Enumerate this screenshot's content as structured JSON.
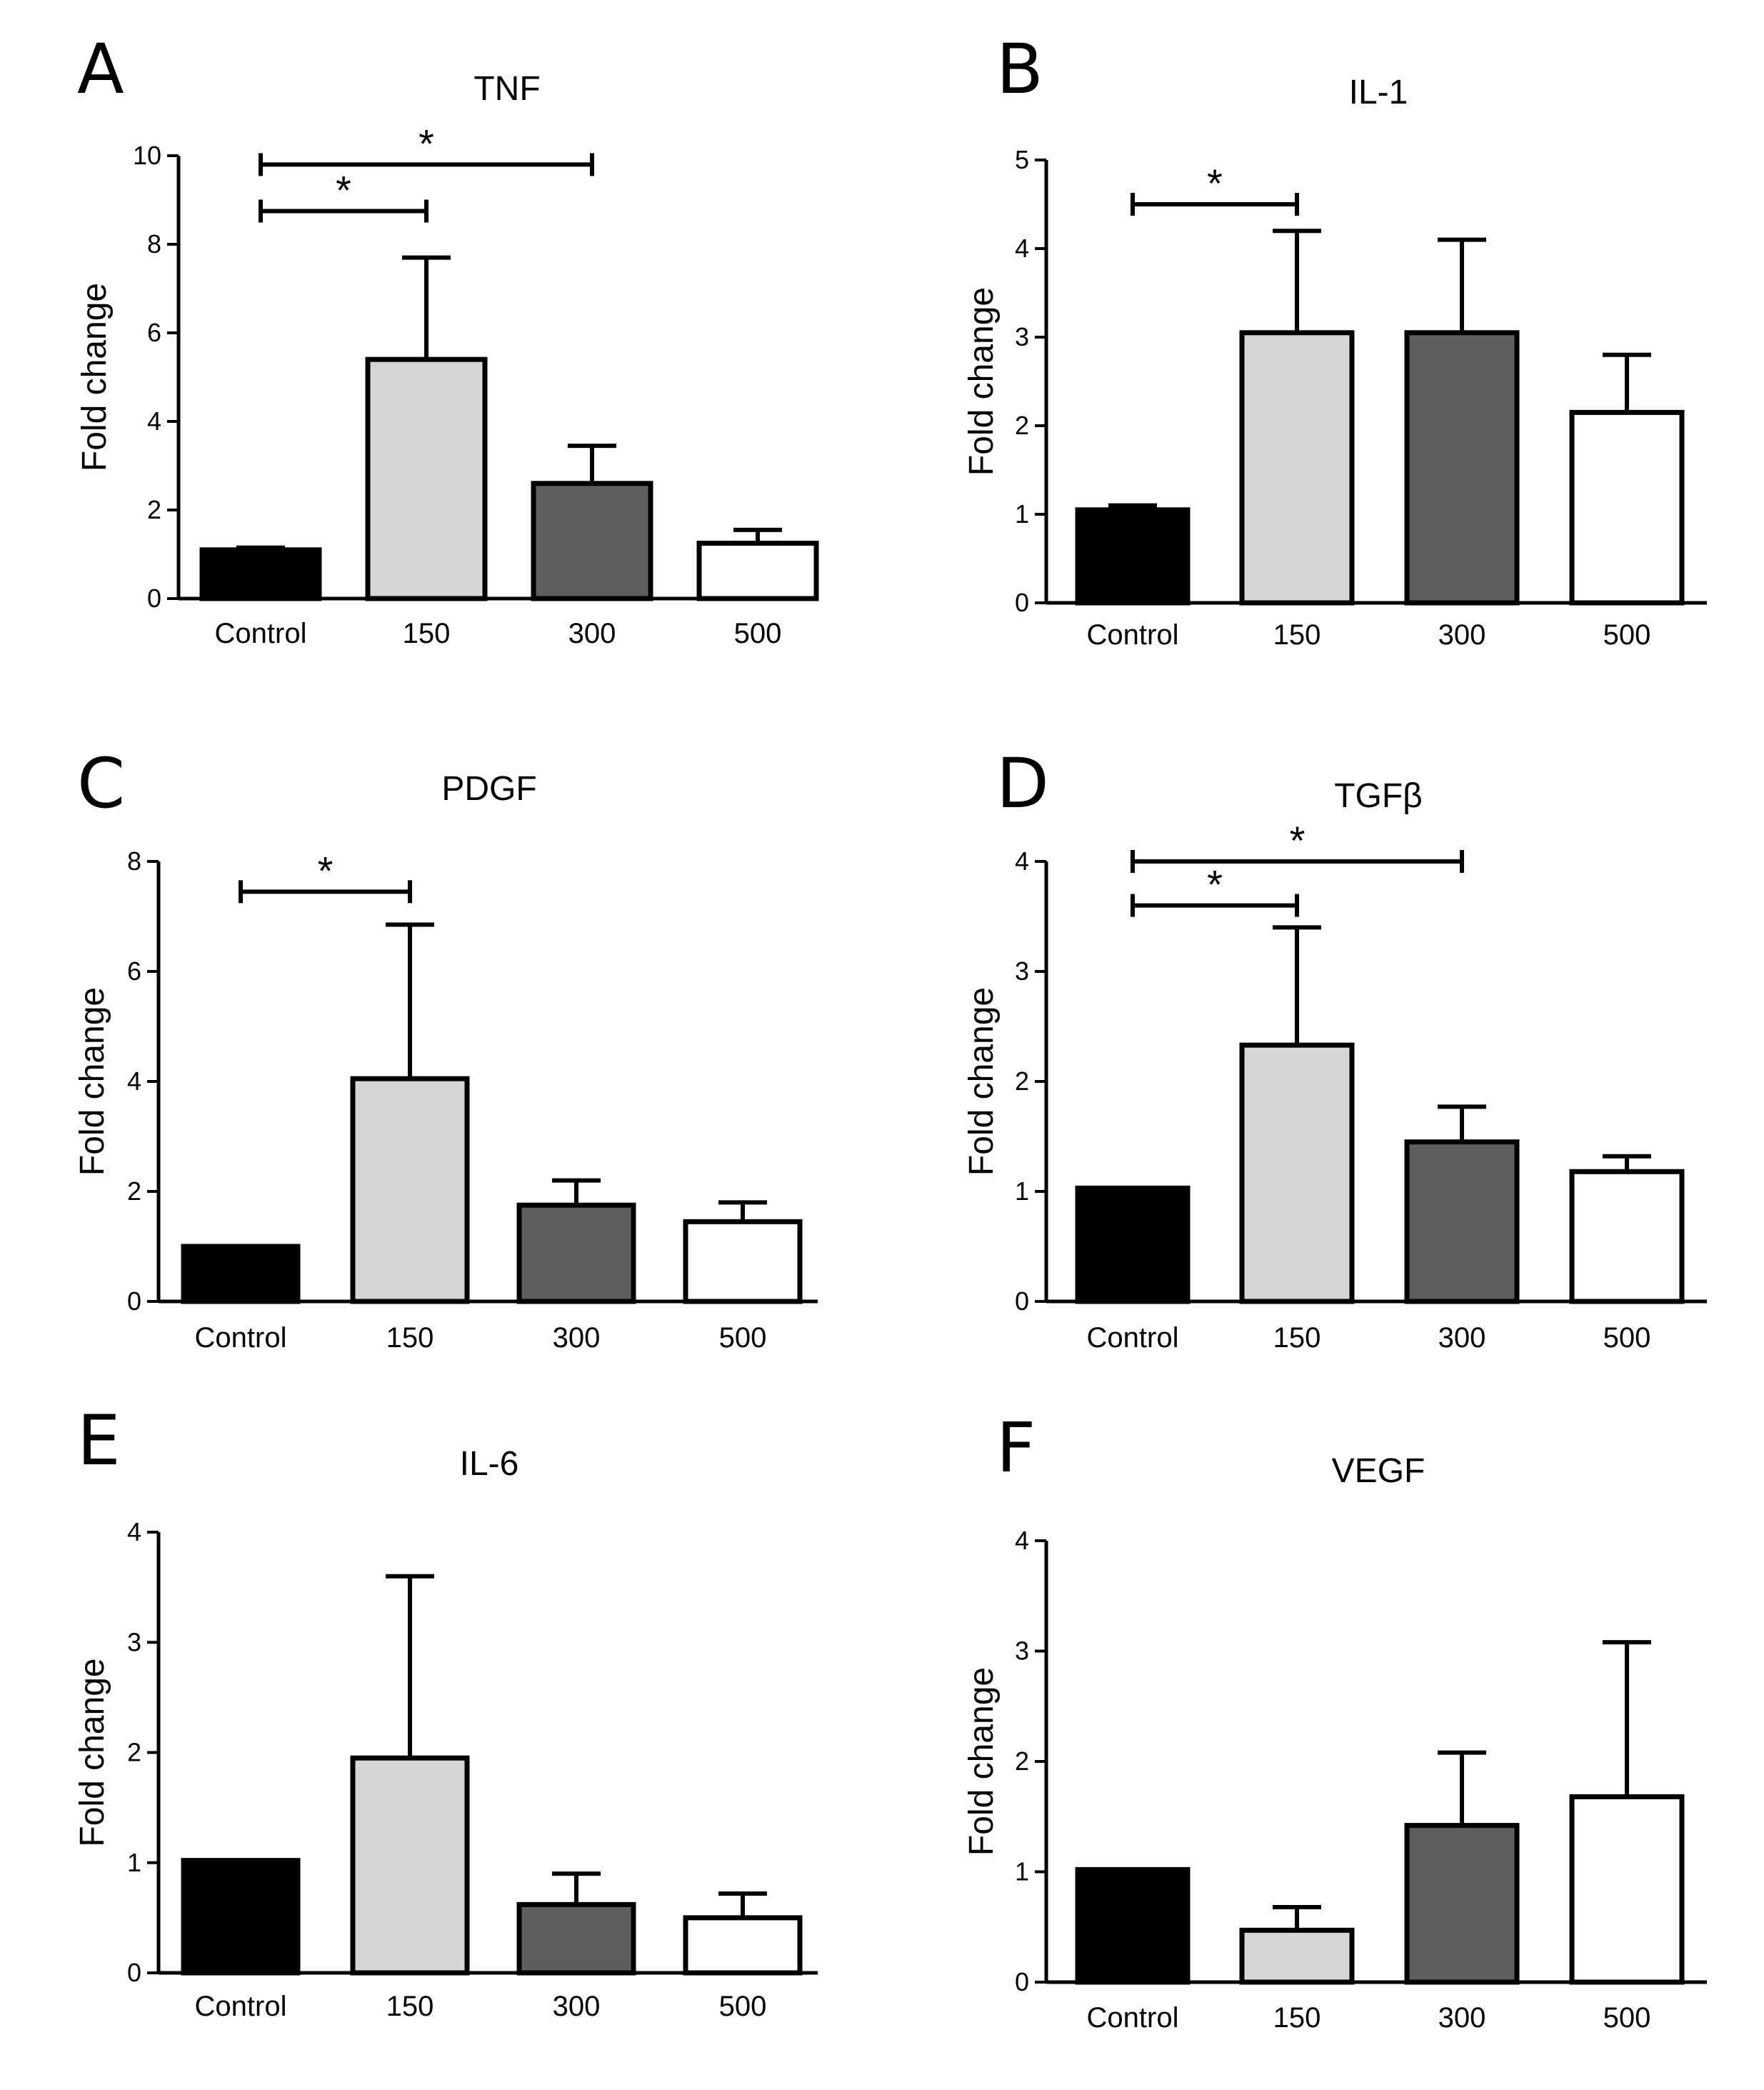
{
  "figure": {
    "colors": {
      "control": "#000000",
      "c150": "#d6d6d6",
      "c300": "#5e5e5e",
      "c500": "#ffffff",
      "stroke": "#000000"
    }
  },
  "chart_data": [
    {
      "type": "bar",
      "panel": "A",
      "title": "TNF",
      "xlabel": "",
      "ylabel": "Fold change",
      "categories": [
        "Control",
        "150",
        "300",
        "500"
      ],
      "values": [
        1.1,
        5.4,
        2.6,
        1.25
      ],
      "error_upper": [
        1.15,
        7.7,
        3.45,
        1.55
      ],
      "ylim": [
        0,
        10
      ],
      "yticks": [
        "0",
        "2",
        "4",
        "6",
        "8",
        "10"
      ],
      "ytick_values": [
        0,
        2,
        4,
        6,
        8,
        10
      ],
      "significance": [
        {
          "from": 0,
          "to": 2,
          "y": 9.8,
          "label": "*"
        },
        {
          "from": 0,
          "to": 1,
          "y": 8.75,
          "label": "*"
        }
      ]
    },
    {
      "type": "bar",
      "panel": "B",
      "title": "IL-1",
      "xlabel": "",
      "ylabel": "Fold change",
      "categories": [
        "Control",
        "150",
        "300",
        "500"
      ],
      "values": [
        1.05,
        3.05,
        3.05,
        2.15
      ],
      "error_upper": [
        1.1,
        4.2,
        4.1,
        2.8
      ],
      "ylim": [
        0,
        5
      ],
      "yticks": [
        "0",
        "1",
        "2",
        "3",
        "4",
        "5"
      ],
      "ytick_values": [
        0,
        1,
        2,
        3,
        4,
        5
      ],
      "significance": [
        {
          "from": 0,
          "to": 1,
          "y": 4.5,
          "label": "*"
        }
      ]
    },
    {
      "type": "bar",
      "panel": "C",
      "title": "PDGF",
      "xlabel": "",
      "ylabel": "Fold change",
      "categories": [
        "Control",
        "150",
        "300",
        "500"
      ],
      "values": [
        1.0,
        4.05,
        1.75,
        1.45
      ],
      "error_upper": [
        1.0,
        6.85,
        2.2,
        1.8
      ],
      "ylim": [
        0,
        8
      ],
      "yticks": [
        "0",
        "2",
        "4",
        "6",
        "8"
      ],
      "ytick_values": [
        0,
        2,
        4,
        6,
        8
      ],
      "significance": [
        {
          "from": 0,
          "to": 1,
          "y": 7.45,
          "label": "*"
        }
      ]
    },
    {
      "type": "bar",
      "panel": "D",
      "title": "TGFβ",
      "xlabel": "",
      "ylabel": "Fold change",
      "categories": [
        "Control",
        "150",
        "300",
        "500"
      ],
      "values": [
        1.03,
        2.33,
        1.45,
        1.18
      ],
      "error_upper": [
        1.03,
        3.4,
        1.77,
        1.32
      ],
      "ylim": [
        0,
        4
      ],
      "yticks": [
        "0",
        "1",
        "2",
        "3",
        "4"
      ],
      "ytick_values": [
        0,
        1,
        2,
        3,
        4
      ],
      "significance": [
        {
          "from": 0,
          "to": 2,
          "y": 4.0,
          "label": "*"
        },
        {
          "from": 0,
          "to": 1,
          "y": 3.6,
          "label": "*"
        }
      ]
    },
    {
      "type": "bar",
      "panel": "E",
      "title": "IL-6",
      "xlabel": "",
      "ylabel": "Fold change",
      "categories": [
        "Control",
        "150",
        "300",
        "500"
      ],
      "values": [
        1.02,
        1.95,
        0.62,
        0.5
      ],
      "error_upper": [
        1.02,
        3.6,
        0.9,
        0.72
      ],
      "ylim": [
        0,
        4
      ],
      "yticks": [
        "0",
        "1",
        "2",
        "3",
        "4"
      ],
      "ytick_values": [
        0,
        1,
        2,
        3,
        4
      ],
      "significance": []
    },
    {
      "type": "bar",
      "panel": "F",
      "title": "VEGF",
      "xlabel": "",
      "ylabel": "Fold change",
      "categories": [
        "Control",
        "150",
        "300",
        "500"
      ],
      "values": [
        1.02,
        0.47,
        1.42,
        1.68
      ],
      "error_upper": [
        1.02,
        0.68,
        2.08,
        3.08
      ],
      "ylim": [
        0,
        4
      ],
      "yticks": [
        "0",
        "1",
        "2",
        "3",
        "4"
      ],
      "ytick_values": [
        0,
        1,
        2,
        3,
        4
      ],
      "significance": []
    }
  ]
}
